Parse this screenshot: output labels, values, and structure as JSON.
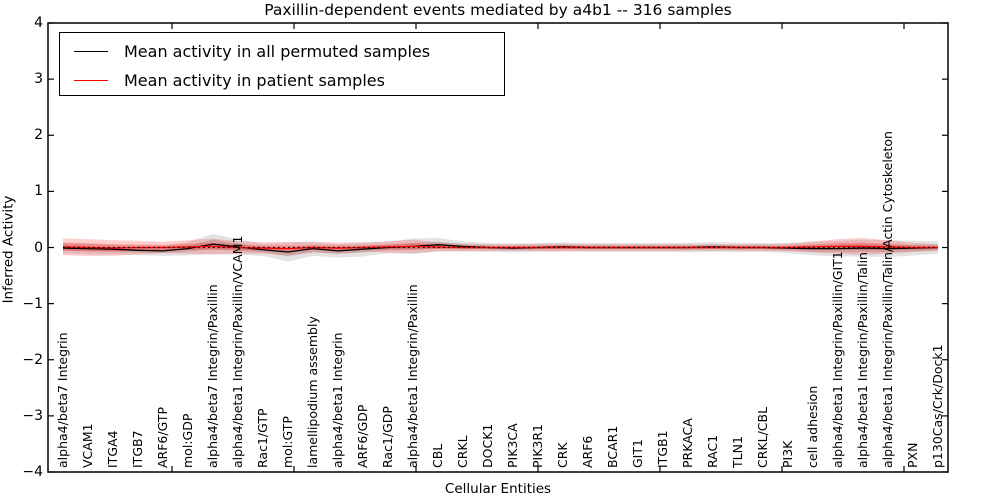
{
  "figure": {
    "title": "Paxillin-dependent events mediated by a4b1 -- 316 samples",
    "xlabel": "Cellular Entities",
    "ylabel": "Inferred Activity",
    "background": "#ffffff"
  },
  "legend": {
    "position": "upper left",
    "items": [
      {
        "label": "Mean activity in all permuted samples",
        "color": "#000000"
      },
      {
        "label": "Mean activity in patient samples",
        "color": "#ff0000"
      }
    ]
  },
  "axes": {
    "ylim": [
      -4,
      4
    ],
    "y_tick_labels": [
      "4",
      "3",
      "2",
      "1",
      "0",
      "−1",
      "−2",
      "−3",
      "−4"
    ],
    "y_tick_values": [
      4,
      3,
      2,
      1,
      0,
      -1,
      -2,
      -3,
      -4
    ],
    "x_numeric_tick_values": [
      5,
      10,
      15,
      20,
      25,
      30,
      35
    ],
    "tick_direction": "in",
    "grid": false
  },
  "chart_data": {
    "type": "line",
    "title": "Paxillin-dependent events mediated by a4b1 -- 316 samples",
    "xlabel": "Cellular Entities",
    "ylabel": "Inferred Activity",
    "ylim": [
      -4,
      4
    ],
    "n_samples": 316,
    "baseline": {
      "value": 0,
      "style": "dotted",
      "color": "#000000"
    },
    "legend_position": "upper left",
    "grid": false,
    "categories": [
      "alpha4/beta7 Integrin",
      "VCAM1",
      "ITGA4",
      "ITGB7",
      "ARF6/GTP",
      "mol:GDP",
      "alpha4/beta7 Integrin/Paxillin",
      "alpha4/beta1 Integrin/Paxillin/VCAM1",
      "Rac1/GTP",
      "mol:GTP",
      "lamellipodium assembly",
      "alpha4/beta1 Integrin",
      "ARF6/GDP",
      "Rac1/GDP",
      "alpha4/beta1 Integrin/Paxillin",
      "CBL",
      "CRKL",
      "DOCK1",
      "PIK3CA",
      "PIK3R1",
      "CRK",
      "ARF6",
      "BCAR1",
      "GIT1",
      "ITGB1",
      "PRKACA",
      "RAC1",
      "TLN1",
      "CRKL/CBL",
      "PI3K",
      "cell adhesion",
      "alpha4/beta1 Integrin/Paxillin/GIT1",
      "alpha4/beta1 Integrin/Paxillin/Talin",
      "alpha4/beta1 Integrin/Paxillin/Talin/Actin Cytoskeleton",
      "PXN",
      "p130Cas/Crk/Dock1"
    ],
    "series": [
      {
        "name": "Mean activity in all permuted samples",
        "color": "#000000",
        "band_color": "#808080",
        "values": [
          -0.01,
          -0.02,
          -0.03,
          -0.05,
          -0.06,
          -0.02,
          0.06,
          0.01,
          -0.04,
          -0.08,
          -0.02,
          -0.06,
          -0.03,
          0.0,
          0.02,
          0.05,
          0.02,
          0.0,
          -0.01,
          0.0,
          0.01,
          0.0,
          0.0,
          0.0,
          0.0,
          0.0,
          0.01,
          0.0,
          0.0,
          -0.01,
          -0.02,
          -0.02,
          -0.01,
          -0.02,
          -0.01,
          0.0
        ],
        "band_half_widths": [
          0.1,
          0.1,
          0.09,
          0.085,
          0.09,
          0.12,
          0.18,
          0.14,
          0.11,
          0.17,
          0.13,
          0.12,
          0.13,
          0.1,
          0.14,
          0.12,
          0.09,
          0.08,
          0.08,
          0.08,
          0.08,
          0.08,
          0.08,
          0.08,
          0.08,
          0.085,
          0.09,
          0.085,
          0.08,
          0.09,
          0.12,
          0.14,
          0.15,
          0.15,
          0.13,
          0.11
        ]
      },
      {
        "name": "Mean activity in patient samples",
        "color": "#ff0000",
        "band_color": "#ff2222",
        "values": [
          0.01,
          0.0,
          -0.01,
          0.0,
          0.0,
          0.01,
          0.02,
          0.0,
          -0.01,
          -0.02,
          0.0,
          -0.01,
          0.0,
          0.01,
          0.02,
          0.01,
          0.0,
          0.0,
          0.0,
          0.0,
          0.0,
          0.0,
          0.0,
          0.0,
          0.0,
          0.0,
          0.0,
          0.0,
          0.0,
          0.0,
          0.01,
          0.02,
          0.02,
          0.01,
          0.0,
          0.0
        ],
        "band_half_widths": [
          0.15,
          0.15,
          0.14,
          0.12,
          0.1,
          0.12,
          0.14,
          0.11,
          0.1,
          0.12,
          0.09,
          0.1,
          0.08,
          0.1,
          0.12,
          0.08,
          0.07,
          0.06,
          0.06,
          0.065,
          0.07,
          0.06,
          0.06,
          0.06,
          0.06,
          0.06,
          0.06,
          0.06,
          0.06,
          0.07,
          0.1,
          0.13,
          0.15,
          0.12,
          0.08,
          0.06
        ]
      }
    ]
  }
}
